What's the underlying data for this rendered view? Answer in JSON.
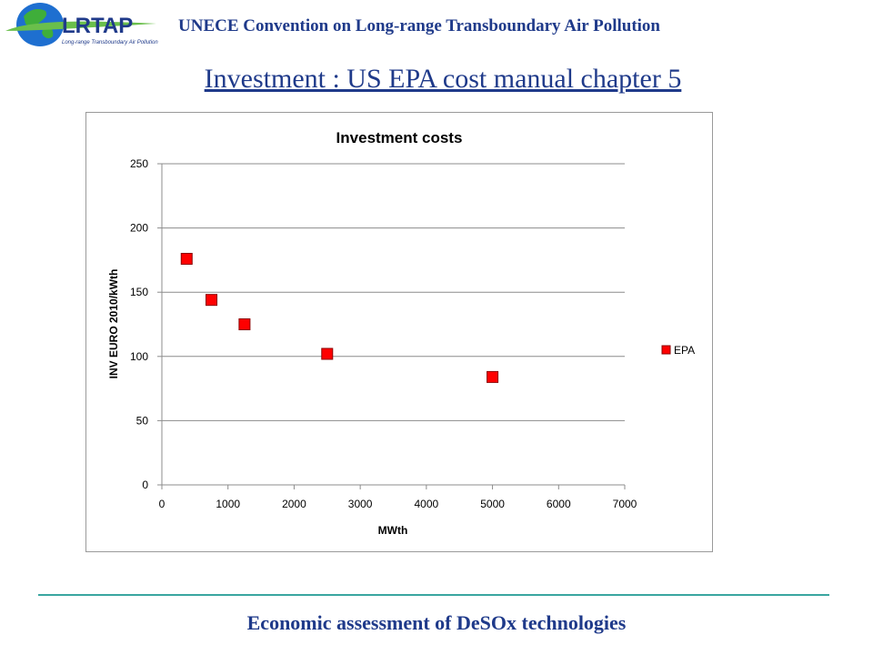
{
  "header": {
    "logo_text": "LRTAP",
    "logo_subtext": "Long-range Transboundary Air Pollution",
    "convention": "UNECE Convention on Long-range Transboundary Air Pollution"
  },
  "slide": {
    "title": "Investment : US EPA cost manual chapter 5"
  },
  "footer": {
    "text": "Economic assessment of DeSOx technologies"
  },
  "colors": {
    "marker_fill": "#ff0000",
    "marker_stroke": "#8b0000",
    "header_blue": "#1f3a8a",
    "footer_line": "#3aa6a0"
  },
  "chart_data": {
    "type": "scatter",
    "title": "Investment costs",
    "xlabel": "MWth",
    "ylabel": "INV EURO 2010/kWth",
    "xlim": [
      0,
      7000
    ],
    "ylim": [
      0,
      250
    ],
    "x_ticks": [
      0,
      1000,
      2000,
      3000,
      4000,
      5000,
      6000,
      7000
    ],
    "y_ticks": [
      0,
      50,
      100,
      150,
      200,
      250
    ],
    "grid": "horizontal",
    "legend_position": "right",
    "series": [
      {
        "name": "EPA",
        "points": [
          {
            "x": 375,
            "y": 176
          },
          {
            "x": 750,
            "y": 144
          },
          {
            "x": 1250,
            "y": 125
          },
          {
            "x": 2500,
            "y": 102
          },
          {
            "x": 5000,
            "y": 84
          }
        ]
      }
    ]
  }
}
